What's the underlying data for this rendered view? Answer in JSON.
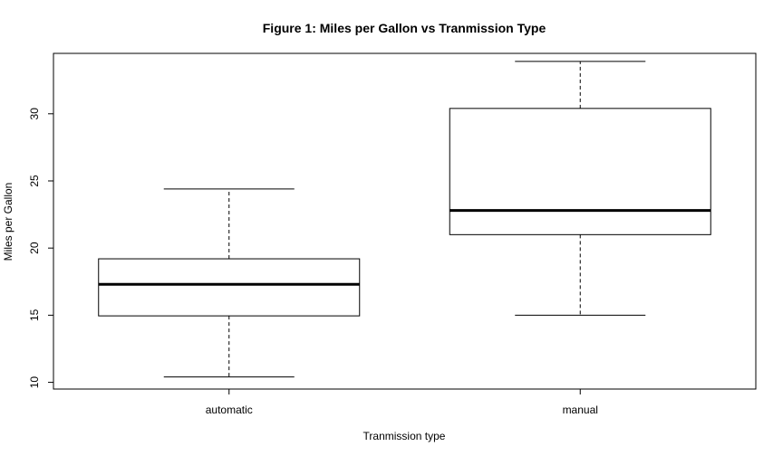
{
  "chart_data": {
    "type": "boxplot",
    "title": "Figure 1: Miles per Gallon vs Tranmission Type",
    "xlabel": "Tranmission type",
    "ylabel": "Miles per Gallon",
    "ylim": [
      9.5,
      34.5
    ],
    "yticks": [
      10,
      15,
      20,
      25,
      30
    ],
    "categories": [
      "automatic",
      "manual"
    ],
    "boxes": [
      {
        "category": "automatic",
        "min": 10.4,
        "q1": 14.95,
        "median": 17.3,
        "q3": 19.2,
        "max": 24.4
      },
      {
        "category": "manual",
        "min": 15.0,
        "q1": 21.0,
        "median": 22.8,
        "q3": 30.4,
        "max": 33.9
      }
    ],
    "grid": false,
    "colors": {
      "box_fill": "#ffffff",
      "stroke": "#000000"
    }
  }
}
